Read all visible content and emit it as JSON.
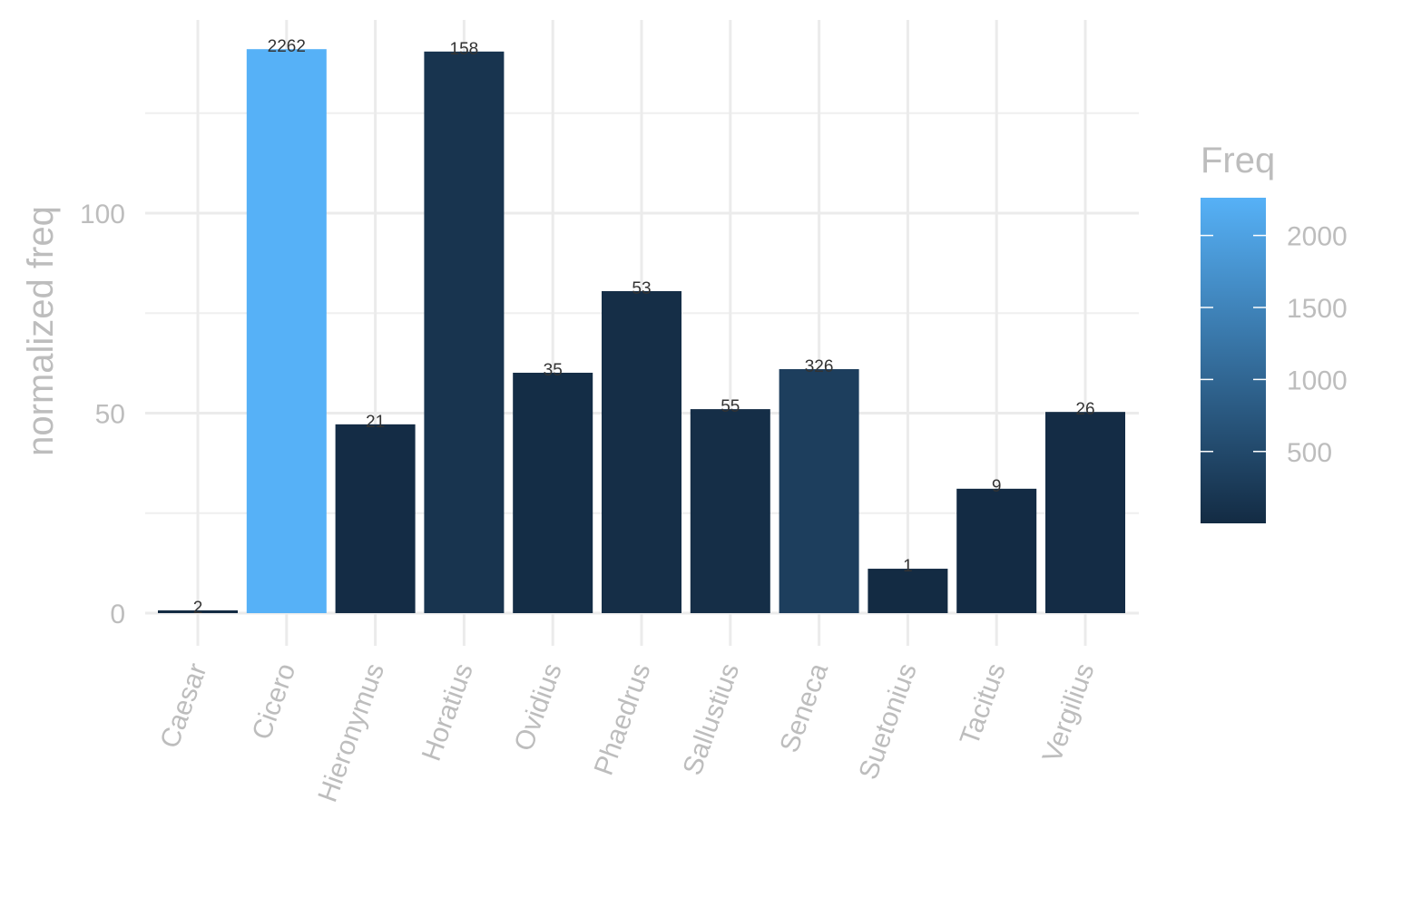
{
  "chart_data": {
    "type": "bar",
    "title": "",
    "xlabel": "",
    "ylabel": "normalized freq",
    "categories": [
      "Caesar",
      "Cicero",
      "Hieronymus",
      "Horatius",
      "Ovidius",
      "Phaedrus",
      "Sallustius",
      "Seneca",
      "Suetonius",
      "Tacitus",
      "Vergilius"
    ],
    "values": [
      0.7,
      141.0,
      47.2,
      140.4,
      60.1,
      80.5,
      51.0,
      61.0,
      11.1,
      31.1,
      50.3
    ],
    "freq": [
      2,
      2262,
      21,
      158,
      35,
      53,
      55,
      326,
      1,
      9,
      26
    ],
    "data_labels": [
      "2",
      "2262",
      "21",
      "158",
      "35",
      "53",
      "55",
      "326",
      "1",
      "9",
      "26"
    ],
    "ylim": [
      -5.4,
      148.3
    ],
    "yticks": [
      0,
      50,
      100
    ],
    "ytick_labels": [
      "0",
      "50",
      "100"
    ],
    "grid": true,
    "legend": {
      "title": "Freq",
      "position": "right",
      "type": "colorbar",
      "range": [
        1,
        2262
      ],
      "ticks": [
        500,
        1000,
        1500,
        2000
      ],
      "tick_labels": [
        "500",
        "1000",
        "1500",
        "2000"
      ],
      "low_color": "#132B43",
      "high_color": "#56B1F7"
    }
  }
}
